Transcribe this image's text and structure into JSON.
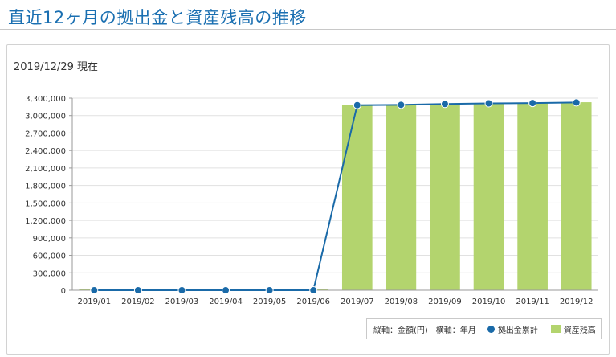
{
  "page": {
    "title": "直近12ヶ月の拠出金と資産残高の推移",
    "as_of": "2019/12/29 現在"
  },
  "legend": {
    "axis_note": "縦軸：金額(円)　横軸：年月",
    "contribution_label": "拠出金累計",
    "assets_label": "資産残高"
  },
  "colors": {
    "title": "#1a6fb1",
    "line": "#1a6aa8",
    "bar": "#b3d46e"
  },
  "chart_data": {
    "type": "bar",
    "title": "",
    "xlabel": "年月",
    "ylabel": "金額(円)",
    "ylim": [
      0,
      3300000
    ],
    "yticks": [
      0,
      300000,
      600000,
      900000,
      1200000,
      1500000,
      1800000,
      2100000,
      2400000,
      2700000,
      3000000,
      3300000
    ],
    "ytick_labels": [
      "0",
      "300,000",
      "600,000",
      "900,000",
      "1,200,000",
      "1,500,000",
      "1,800,000",
      "2,100,000",
      "2,400,000",
      "2,700,000",
      "3,000,000",
      "3,300,000"
    ],
    "categories": [
      "2019/01",
      "2019/02",
      "2019/03",
      "2019/04",
      "2019/05",
      "2019/06",
      "2019/07",
      "2019/08",
      "2019/09",
      "2019/10",
      "2019/11",
      "2019/12"
    ],
    "grid": true,
    "legend_position": "bottom-right",
    "series": [
      {
        "name": "資産残高",
        "kind": "bar",
        "values": [
          0,
          0,
          0,
          0,
          0,
          0,
          3180000,
          3180000,
          3200000,
          3210000,
          3215000,
          3230000
        ]
      },
      {
        "name": "拠出金累計",
        "kind": "line",
        "values": [
          0,
          0,
          0,
          0,
          0,
          0,
          3180000,
          3185000,
          3200000,
          3210000,
          3215000,
          3225000
        ]
      }
    ]
  }
}
